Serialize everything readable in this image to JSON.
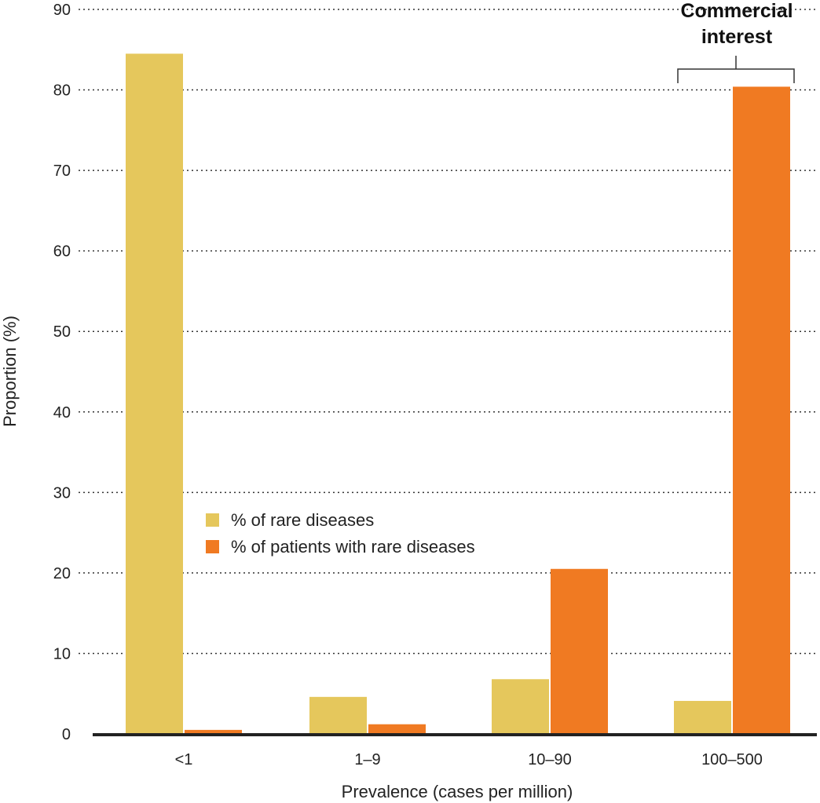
{
  "chart_data": {
    "type": "bar",
    "title": "",
    "xlabel": "Prevalence (cases per million)",
    "ylabel": "Proportion (%)",
    "ylim": [
      0,
      90
    ],
    "yticks": [
      "0",
      "10",
      "20",
      "30",
      "40",
      "50",
      "60",
      "70",
      "80",
      "90"
    ],
    "grid": true,
    "legend_position": "center-left",
    "categories": [
      "<1",
      "1–9",
      "10–90",
      "100–500"
    ],
    "series": [
      {
        "name": "% of rare diseases",
        "color": "#e5c75c",
        "values": [
          84.5,
          4.6,
          6.8,
          4.1
        ]
      },
      {
        "name": "% of patients with rare diseases",
        "color": "#f07a22",
        "values": [
          0.5,
          1.2,
          20.5,
          80.4
        ]
      }
    ],
    "annotation": {
      "text_line1": "Commercial",
      "text_line2": "interest",
      "category": "100–500"
    }
  }
}
